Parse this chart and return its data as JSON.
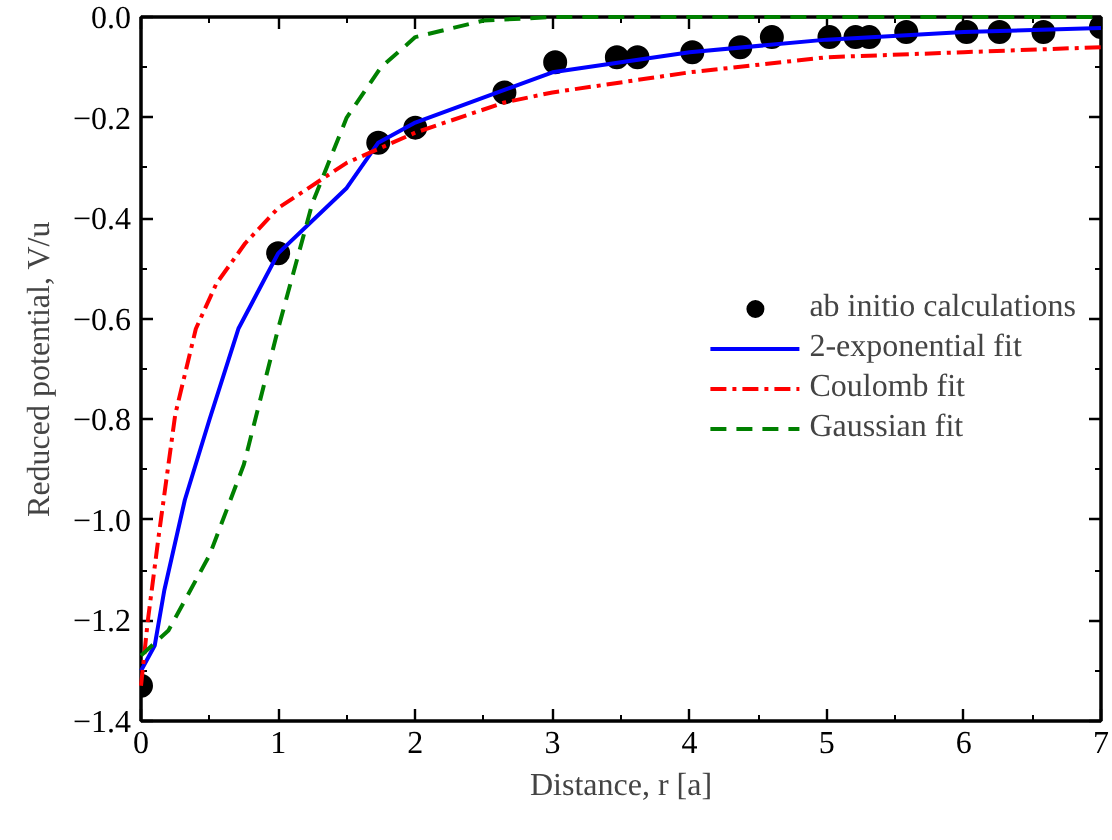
{
  "chart_data": {
    "type": "line",
    "xlabel": "Distance, r [a]",
    "ylabel": "Reduced potential, V/u",
    "xlim": [
      0,
      7
    ],
    "xticks": [
      0,
      1,
      2,
      3,
      4,
      5,
      6,
      7
    ],
    "ylim": [
      -1.4,
      0.0
    ],
    "yticks": [
      {
        "value": -1.4,
        "label": "−1.4"
      },
      {
        "value": -1.2,
        "label": "−1.2"
      },
      {
        "value": -1.0,
        "label": "−1.0"
      },
      {
        "value": -0.8,
        "label": "−0.8"
      },
      {
        "value": -0.6,
        "label": "−0.6"
      },
      {
        "value": -0.4,
        "label": "−0.4"
      },
      {
        "value": -0.2,
        "label": "−0.2"
      },
      {
        "value": 0.0,
        "label": "0.0"
      }
    ],
    "grid": false,
    "legend": "right",
    "series": [
      {
        "name": "ab initio calculations",
        "type": "scatter",
        "marker": "circle",
        "color": "#000000",
        "x": [
          0,
          1,
          1.73,
          2,
          2.65,
          3.02,
          3.47,
          3.62,
          4.02,
          4.37,
          4.6,
          5.02,
          5.21,
          5.31,
          5.58,
          6.02,
          6.26,
          6.58,
          7.0
        ],
        "values": [
          -1.33,
          -0.47,
          -0.25,
          -0.22,
          -0.15,
          -0.09,
          -0.08,
          -0.08,
          -0.07,
          -0.06,
          -0.04,
          -0.04,
          -0.04,
          -0.04,
          -0.03,
          -0.03,
          -0.03,
          -0.03,
          -0.02
        ]
      },
      {
        "name": "2-exponential fit",
        "line_style": "solid",
        "color": "#0000ff",
        "x": [
          0,
          0.1,
          0.17,
          0.32,
          0.5,
          0.71,
          1.0,
          1.5,
          1.73,
          2,
          2.65,
          3,
          4,
          5,
          6,
          7
        ],
        "values": [
          -1.3,
          -1.25,
          -1.14,
          -0.96,
          -0.8,
          -0.62,
          -0.47,
          -0.34,
          -0.25,
          -0.21,
          -0.145,
          -0.11,
          -0.07,
          -0.045,
          -0.03,
          -0.022
        ]
      },
      {
        "name": "Coulomb fit",
        "line_style": "dashdot",
        "color": "#ff0000",
        "x": [
          0,
          0.05,
          0.13,
          0.25,
          0.4,
          0.55,
          0.76,
          1.0,
          1.5,
          2,
          2.65,
          3,
          4,
          5,
          6,
          7
        ],
        "values": [
          -1.33,
          -1.2,
          -1.03,
          -0.79,
          -0.62,
          -0.53,
          -0.45,
          -0.38,
          -0.29,
          -0.23,
          -0.17,
          -0.15,
          -0.11,
          -0.08,
          -0.07,
          -0.06
        ]
      },
      {
        "name": "Gaussian fit",
        "line_style": "dashed",
        "color": "#008000",
        "x": [
          0,
          0.2,
          0.5,
          0.75,
          1.0,
          1.25,
          1.5,
          1.75,
          2.0,
          2.5,
          3,
          4,
          5,
          6,
          7
        ],
        "values": [
          -1.27,
          -1.22,
          -1.07,
          -0.89,
          -0.62,
          -0.37,
          -0.2,
          -0.1,
          -0.04,
          -0.007,
          0.0,
          0.0,
          0.0,
          0.0,
          0.0
        ]
      }
    ]
  }
}
